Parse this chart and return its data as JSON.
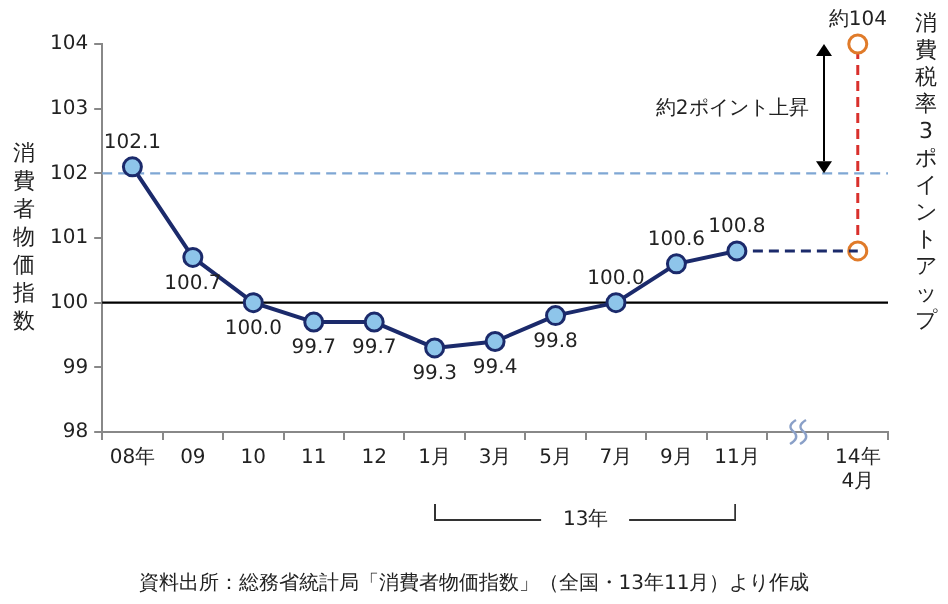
{
  "chart_data": {
    "type": "line",
    "ylabel": "消費者物価指数",
    "categories": [
      "08年",
      "09",
      "10",
      "11",
      "12",
      "1月",
      "3月",
      "5月",
      "7月",
      "9月",
      "11月",
      null,
      "14年\n4月"
    ],
    "series": [
      {
        "type": "line",
        "color": "#1b2a6b",
        "marker": "circle",
        "colors": [
          "#8ec5ea",
          "#8ec5ea",
          "#8ec5ea",
          "#8ec5ea",
          "#8ec5ea",
          "#8ec5ea",
          "#8ec5ea",
          "#8ec5ea",
          "#8ec5ea",
          "#8ec5ea",
          "#8ec5ea",
          null,
          null
        ],
        "values": [
          102.1,
          100.7,
          100.0,
          99.7,
          99.7,
          99.3,
          99.4,
          99.8,
          100.0,
          100.6,
          100.8,
          null,
          null
        ],
        "value_labels": [
          "102.1",
          "100.7",
          "100.0",
          "99.7",
          "99.7",
          "99.3",
          "99.4",
          "99.8",
          "100.0",
          "100.6",
          "100.8",
          null,
          null
        ]
      },
      {
        "type": "line",
        "color": "#1b2a6b",
        "line_style": "dashed",
        "x": [
          "11月",
          "14年\n4月"
        ],
        "values": [
          100.8,
          100.8
        ]
      },
      {
        "type": "line",
        "color": "#d9302c",
        "marker": "circle",
        "line_style": "dashed",
        "colors": [
          "#e07b2a",
          "#e07b2a"
        ],
        "x": [
          "14年\n4月",
          "14年\n4月"
        ],
        "values": [
          100.8,
          104
        ],
        "value_labels": [
          null,
          "約104"
        ]
      }
    ],
    "ylim": [
      98,
      104
    ],
    "yticks": [
      98,
      99,
      100,
      101,
      102,
      103,
      104
    ],
    "grid": false,
    "legend": false,
    "ref_lines": [
      {
        "axis": "y",
        "value": 102,
        "color": "#7fa7d4",
        "line_style": "dashed"
      },
      {
        "axis": "y",
        "value": 100,
        "color": "#000000",
        "line_style": "solid"
      }
    ],
    "annotations": [
      "約2ポイント上昇",
      "消費税率3ポイントアップ",
      "13年",
      "資料出所：総務省統計局「消費者物価指数」（全国・13年11月）より作成"
    ]
  }
}
